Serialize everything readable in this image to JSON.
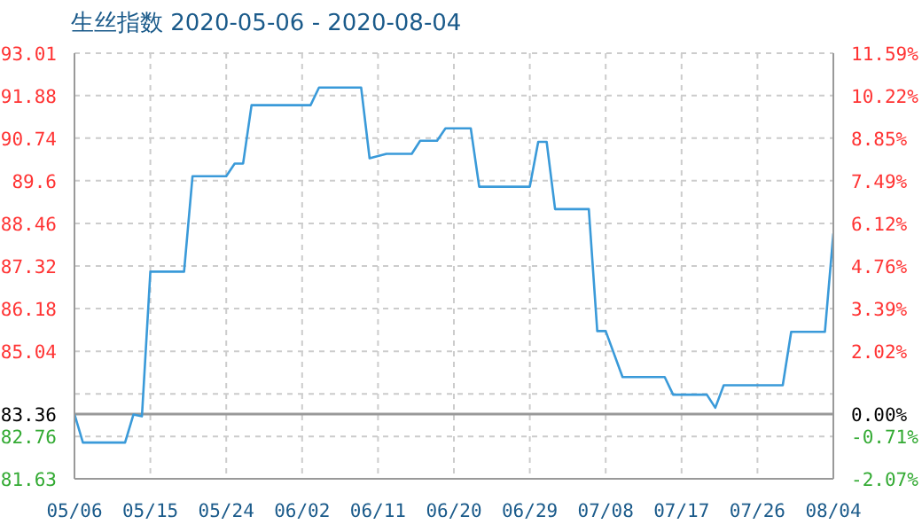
{
  "chart_data": {
    "type": "line",
    "title": "生丝指数 2020-05-06 - 2020-08-04",
    "x": [
      "2020-05-06",
      "2020-05-07",
      "2020-05-12",
      "2020-05-13",
      "2020-05-14",
      "2020-05-15",
      "2020-05-19",
      "2020-05-20",
      "2020-05-24",
      "2020-05-25",
      "2020-05-26",
      "2020-05-27",
      "2020-06-03",
      "2020-06-04",
      "2020-06-09",
      "2020-06-10",
      "2020-06-12",
      "2020-06-15",
      "2020-06-16",
      "2020-06-18",
      "2020-06-19",
      "2020-06-22",
      "2020-06-23",
      "2020-06-29",
      "2020-06-30",
      "2020-07-01",
      "2020-07-02",
      "2020-07-06",
      "2020-07-07",
      "2020-07-08",
      "2020-07-10",
      "2020-07-15",
      "2020-07-16",
      "2020-07-20",
      "2020-07-21",
      "2020-07-22",
      "2020-07-29",
      "2020-07-30",
      "2020-08-03",
      "2020-08-04"
    ],
    "series": [
      {
        "color": "#3a9ad9",
        "values": [
          83.36,
          82.6,
          82.6,
          83.35,
          83.3,
          87.17,
          87.17,
          89.72,
          89.72,
          90.06,
          90.06,
          91.62,
          91.62,
          92.09,
          92.09,
          90.2,
          90.32,
          90.32,
          90.67,
          90.67,
          91.0,
          91.0,
          89.44,
          89.44,
          90.64,
          90.64,
          88.84,
          88.84,
          85.58,
          85.58,
          84.35,
          84.35,
          83.88,
          83.88,
          83.53,
          84.13,
          84.13,
          85.56,
          85.56,
          88.19
        ]
      }
    ],
    "xlim": [
      "2020-05-06",
      "2020-08-04"
    ],
    "xticks": [
      {
        "value": "2020-05-06",
        "label": "05/06"
      },
      {
        "value": "2020-05-15",
        "label": "05/15"
      },
      {
        "value": "2020-05-24",
        "label": "05/24"
      },
      {
        "value": "2020-06-02",
        "label": "06/02"
      },
      {
        "value": "2020-06-11",
        "label": "06/11"
      },
      {
        "value": "2020-06-20",
        "label": "06/20"
      },
      {
        "value": "2020-06-29",
        "label": "06/29"
      },
      {
        "value": "2020-07-08",
        "label": "07/08"
      },
      {
        "value": "2020-07-17",
        "label": "07/17"
      },
      {
        "value": "2020-07-26",
        "label": "07/26"
      },
      {
        "value": "2020-08-04",
        "label": "08/04"
      }
    ],
    "ylim": [
      81.63,
      93.01
    ],
    "yticks": [
      81.63,
      82.76,
      83.36,
      {
        "value": 83.9,
        "label": null
      },
      85.04,
      86.18,
      87.32,
      88.46,
      89.6,
      90.74,
      91.88,
      93.01
    ],
    "y2lim": [
      -2.07,
      11.59
    ],
    "y2ticks": [
      {
        "value": -2.07,
        "label": "-2.07%"
      },
      {
        "value": -0.71,
        "label": "-0.71%"
      },
      {
        "value": 0,
        "label": "0.00%"
      },
      {
        "value": 0.65,
        "label": null
      },
      {
        "value": 2.02,
        "label": "2.02%"
      },
      {
        "value": 3.39,
        "label": "3.39%"
      },
      {
        "value": 4.76,
        "label": "4.76%"
      },
      {
        "value": 6.12,
        "label": "6.12%"
      },
      {
        "value": 7.49,
        "label": "7.49%"
      },
      {
        "value": 8.85,
        "label": "8.85%"
      },
      {
        "value": 10.22,
        "label": "10.22%"
      },
      {
        "value": 11.59,
        "label": "11.59%"
      }
    ],
    "ref_lines": [
      {
        "axis": "y",
        "value": 83.36,
        "color": "#999999"
      }
    ],
    "grid": true,
    "marker": "none",
    "line_style": "solid"
  }
}
